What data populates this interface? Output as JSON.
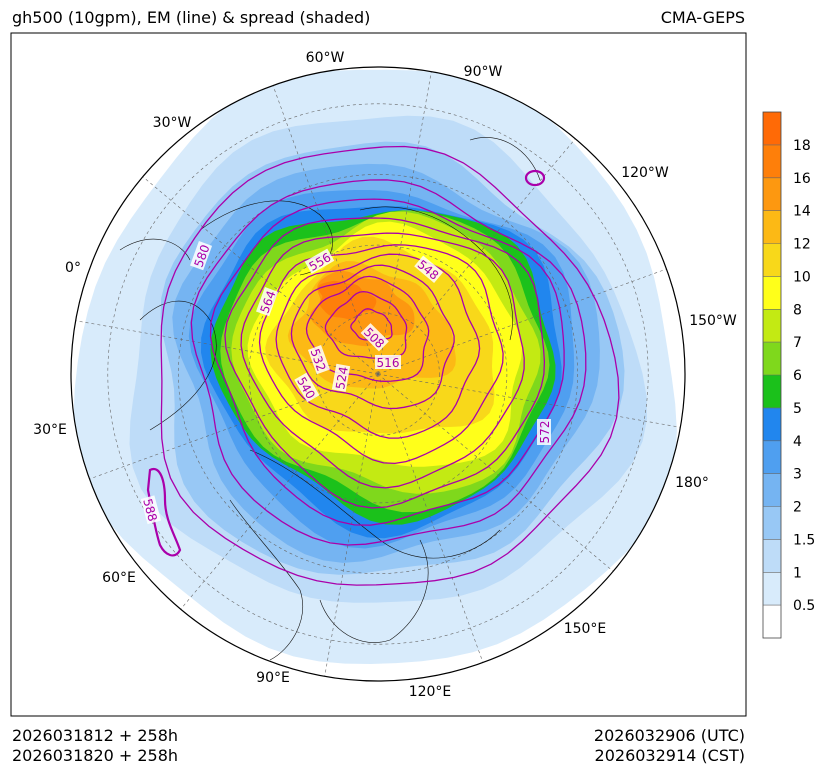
{
  "header": {
    "title_left": "gh500 (10gpm), EM (line) & spread (shaded)",
    "title_right": "CMA-GEPS"
  },
  "footer": {
    "init_utc": "2026031812 + 258h",
    "init_cst": "2026031820 + 258h",
    "valid_utc": "2026032906 (UTC)",
    "valid_cst": "2026032914 (CST)"
  },
  "map": {
    "projection": "north-polar-stereographic",
    "longitude_labels": [
      "60°W",
      "90°W",
      "30°W",
      "120°W",
      "0°",
      "150°W",
      "30°E",
      "180°",
      "60°E",
      "150°E",
      "90°E",
      "120°E"
    ],
    "contour_labels": [
      "580",
      "556",
      "548",
      "564",
      "508",
      "516",
      "532",
      "524",
      "540",
      "572",
      "588"
    ],
    "contour_color": "#aa00aa"
  },
  "colorbar": {
    "levels": [
      "0.5",
      "1",
      "1.5",
      "2",
      "3",
      "4",
      "5",
      "6",
      "7",
      "8",
      "10",
      "12",
      "14",
      "16",
      "18"
    ],
    "colors": [
      "#ffffff",
      "#d8ebfb",
      "#bedcf8",
      "#98c8f5",
      "#75b4f2",
      "#4f9ff0",
      "#2186ee",
      "#1bc11b",
      "#7fd81c",
      "#c3ea13",
      "#ffff1a",
      "#f8d81a",
      "#fcb915",
      "#fd9810",
      "#fe7f0a",
      "#ff6a06"
    ]
  }
}
